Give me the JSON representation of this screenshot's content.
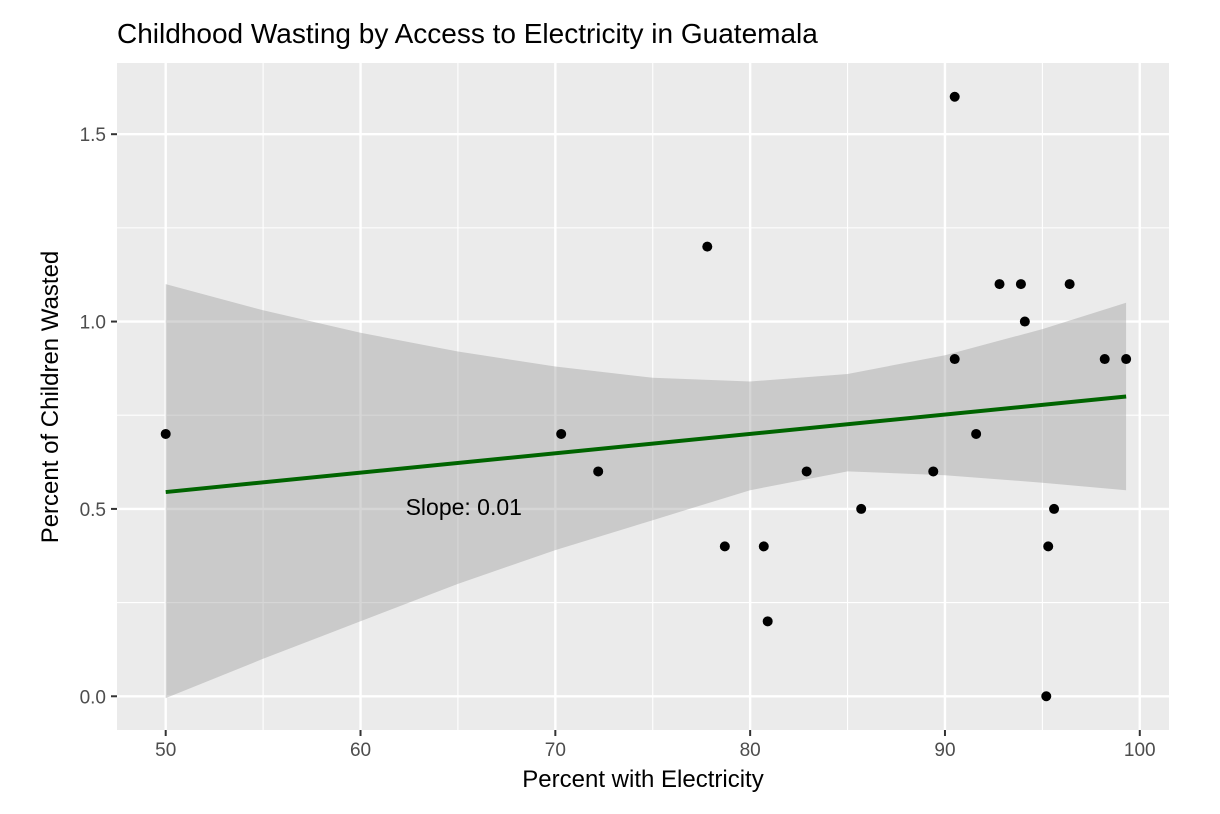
{
  "chart_data": {
    "type": "scatter",
    "title": "Childhood Wasting by Access to Electricity in Guatemala",
    "xlabel": "Percent with Electricity",
    "ylabel": "Percent of Children Wasted",
    "xlim": [
      47.5,
      101.5
    ],
    "ylim": [
      -0.09,
      1.69
    ],
    "x_ticks": [
      50,
      60,
      70,
      80,
      90,
      100
    ],
    "y_ticks": [
      0.0,
      0.5,
      1.0,
      1.5
    ],
    "x_tick_labels": [
      "50",
      "60",
      "70",
      "80",
      "90",
      "100"
    ],
    "y_tick_labels": [
      "0.0",
      "0.5",
      "1.0",
      "1.5"
    ],
    "grid": true,
    "points": [
      {
        "x": 50.0,
        "y": 0.7
      },
      {
        "x": 70.3,
        "y": 0.7
      },
      {
        "x": 72.2,
        "y": 0.6
      },
      {
        "x": 77.8,
        "y": 1.2
      },
      {
        "x": 78.7,
        "y": 0.4
      },
      {
        "x": 80.7,
        "y": 0.4
      },
      {
        "x": 80.9,
        "y": 0.2
      },
      {
        "x": 82.9,
        "y": 0.6
      },
      {
        "x": 85.7,
        "y": 0.5
      },
      {
        "x": 89.4,
        "y": 0.6
      },
      {
        "x": 90.5,
        "y": 1.6
      },
      {
        "x": 90.5,
        "y": 0.9
      },
      {
        "x": 91.6,
        "y": 0.7
      },
      {
        "x": 92.8,
        "y": 1.1
      },
      {
        "x": 93.9,
        "y": 1.1
      },
      {
        "x": 94.1,
        "y": 1.0
      },
      {
        "x": 95.2,
        "y": 0.0
      },
      {
        "x": 95.3,
        "y": 0.4
      },
      {
        "x": 95.6,
        "y": 0.5
      },
      {
        "x": 96.4,
        "y": 1.1
      },
      {
        "x": 98.2,
        "y": 0.9
      },
      {
        "x": 99.3,
        "y": 0.9
      }
    ],
    "regression": {
      "x_start": 50.0,
      "x_end": 99.3,
      "y_start": 0.545,
      "y_end": 0.8,
      "color": "#006400"
    },
    "confidence_band": {
      "x": [
        50,
        55,
        60,
        65,
        70,
        75,
        80,
        85,
        90,
        95,
        99.3
      ],
      "upper": [
        1.1,
        1.03,
        0.97,
        0.92,
        0.88,
        0.85,
        0.84,
        0.86,
        0.91,
        0.98,
        1.05
      ],
      "lower": [
        -0.005,
        0.1,
        0.2,
        0.3,
        0.39,
        0.47,
        0.55,
        0.6,
        0.59,
        0.57,
        0.55
      ],
      "color": "#c8c8c8"
    },
    "annotation": {
      "text": "Slope: 0.01",
      "x": 65.3,
      "y": 0.5
    },
    "colors": {
      "panel_background": "#ebebeb",
      "grid_major": "#ffffff",
      "points": "#000000"
    }
  }
}
